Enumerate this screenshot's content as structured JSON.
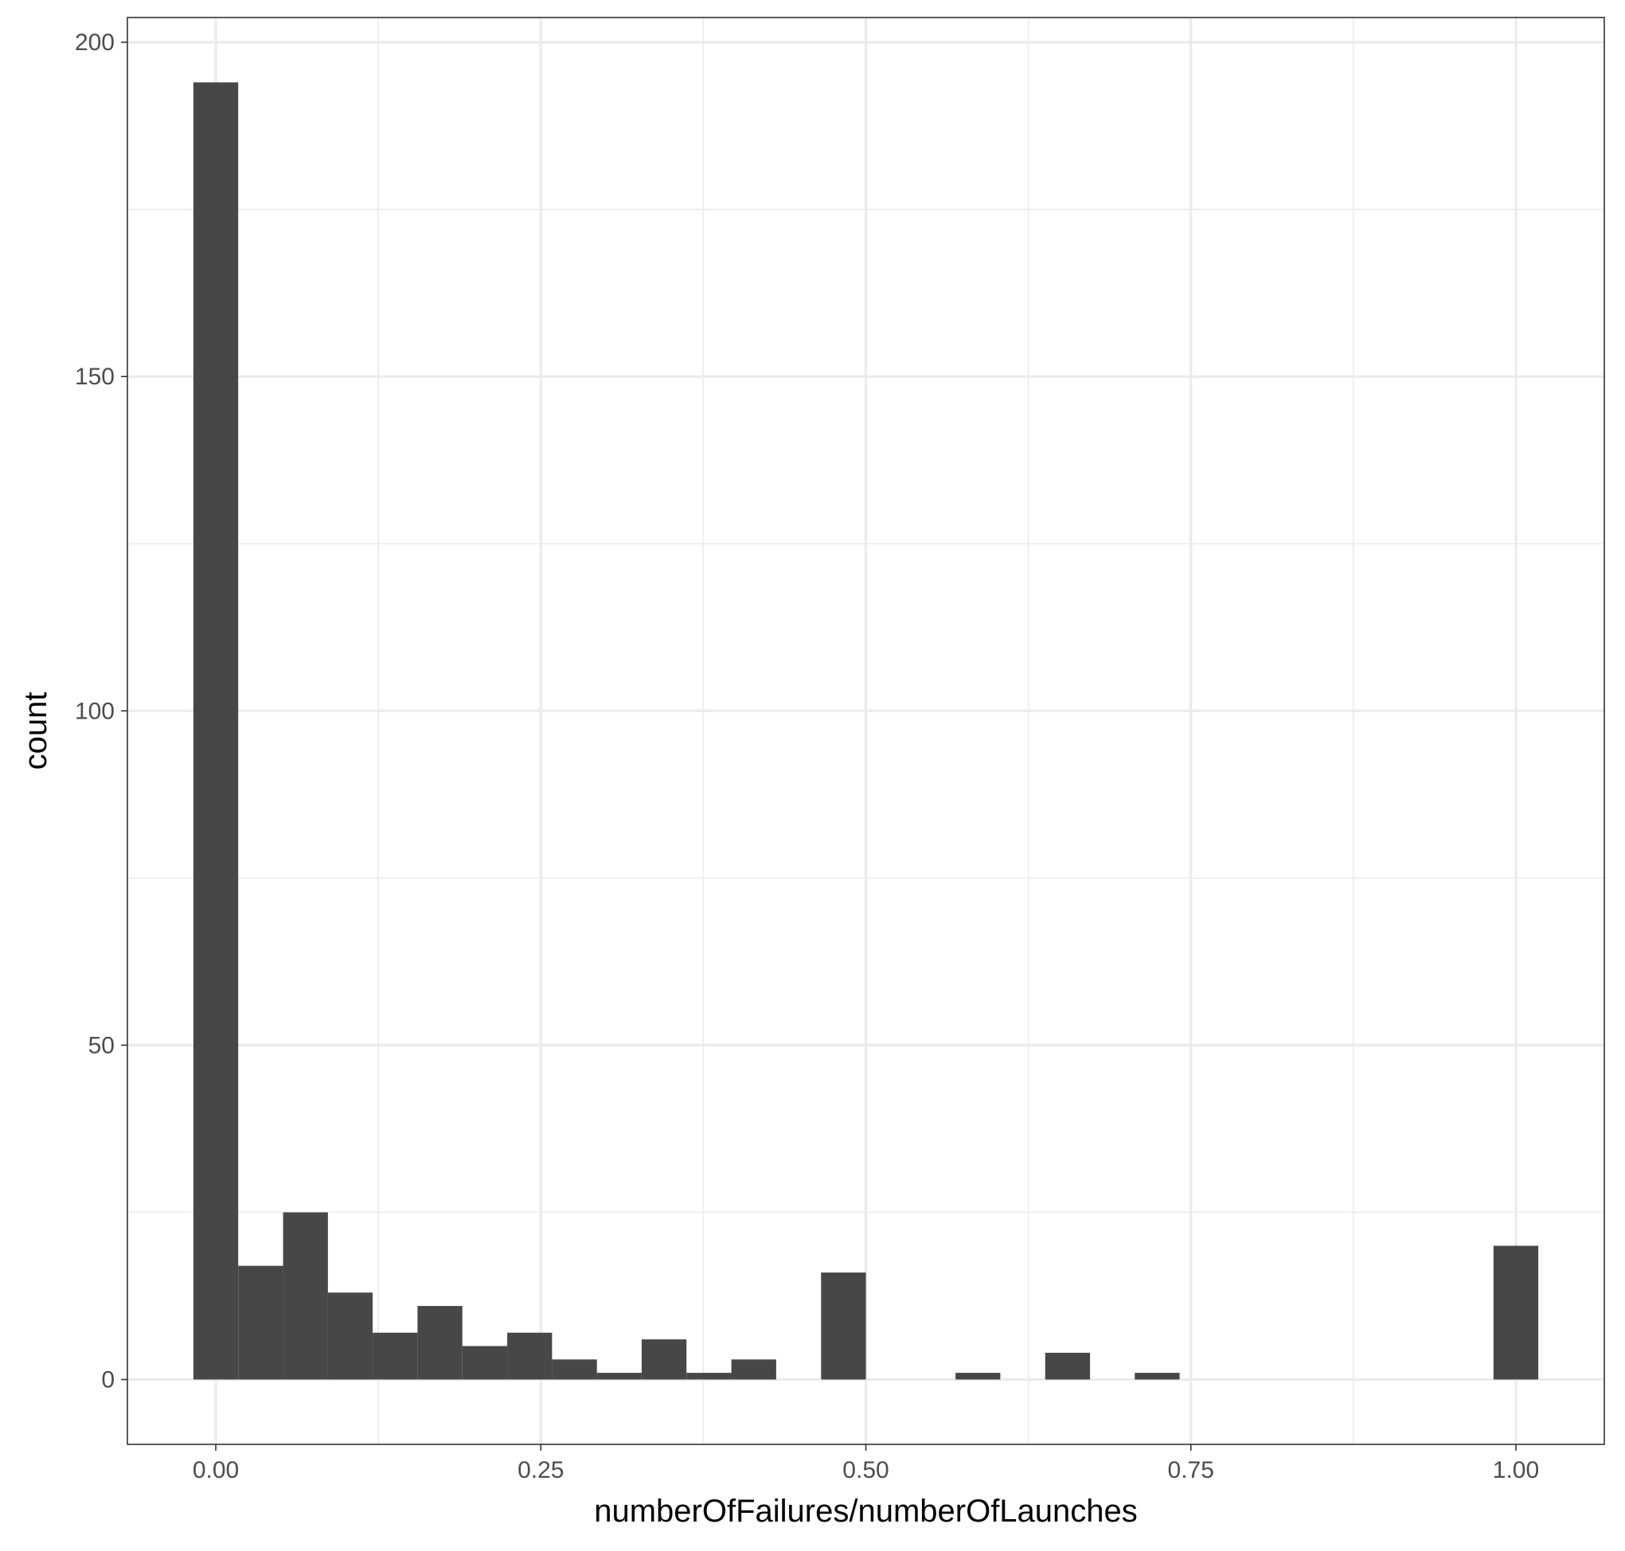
{
  "chart_data": {
    "type": "bar",
    "subtype": "histogram",
    "title": "",
    "xlabel": "numberOfFailures/numberOfLaunches",
    "ylabel": "count",
    "xlim": [
      -0.068,
      1.068
    ],
    "ylim": [
      -9.7,
      203.7
    ],
    "x_ticks": [
      0.0,
      0.25,
      0.5,
      0.75,
      1.0
    ],
    "x_tick_labels": [
      "0.00",
      "0.25",
      "0.50",
      "0.75",
      "1.00"
    ],
    "y_ticks": [
      0,
      50,
      100,
      150,
      200
    ],
    "y_tick_labels": [
      "0",
      "50",
      "100",
      "150",
      "200"
    ],
    "bin_width": 0.03448,
    "bin_centers": [
      0.0,
      0.0345,
      0.069,
      0.1034,
      0.1379,
      0.1724,
      0.2069,
      0.2414,
      0.2759,
      0.3103,
      0.3448,
      0.3793,
      0.4138,
      0.4483,
      0.4828,
      0.5172,
      0.5517,
      0.5862,
      0.6207,
      0.6552,
      0.6897,
      0.7241,
      0.7586,
      0.7931,
      0.8276,
      0.8621,
      0.8966,
      0.931,
      0.9655,
      1.0
    ],
    "values": [
      194,
      17,
      25,
      13,
      7,
      11,
      5,
      7,
      3,
      1,
      6,
      1,
      3,
      0,
      16,
      0,
      0,
      1,
      0,
      4,
      0,
      1,
      0,
      0,
      0,
      0,
      0,
      0,
      0,
      20
    ],
    "bar_color": "#474747",
    "grid": true,
    "legend": "none",
    "panel_background": "#ffffff",
    "grid_color": "#ebebeb",
    "border_color": "#333333"
  }
}
